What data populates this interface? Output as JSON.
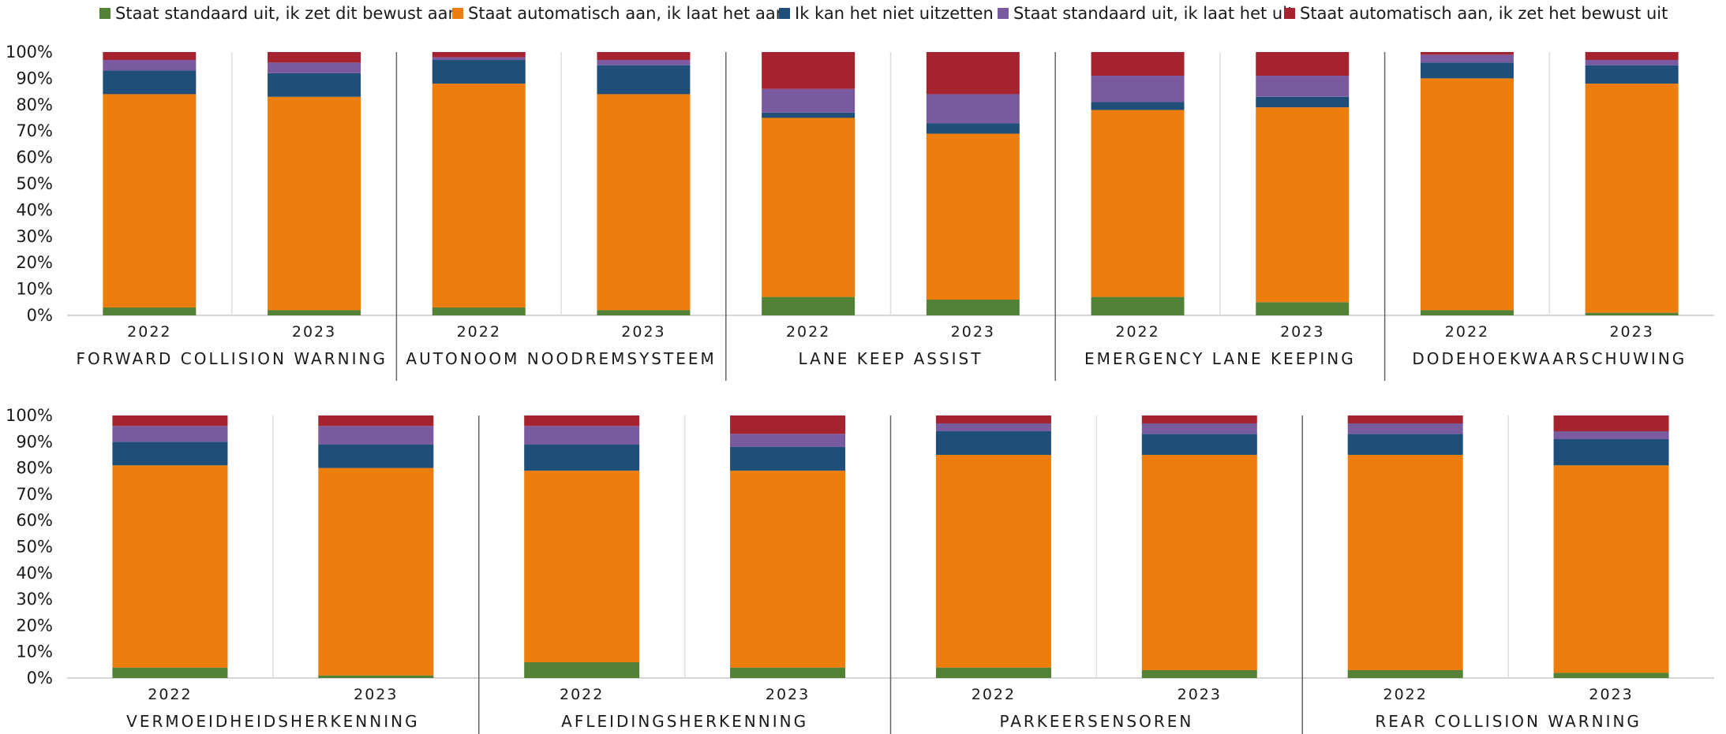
{
  "legend": [
    {
      "label": "Staat standaard uit, ik zet dit bewust aan",
      "color": "#538135"
    },
    {
      "label": "Staat automatisch aan, ik laat het aan",
      "color": "#ed7d0c"
    },
    {
      "label": "Ik kan het niet uitzetten",
      "color": "#1f4e79"
    },
    {
      "label": "Staat standaard uit, ik laat het uit",
      "color": "#7a5a9e"
    },
    {
      "label": "Staat automatisch aan, ik zet het bewust uit",
      "color": "#a4232f"
    }
  ],
  "chart_data": {
    "type": "bar",
    "stacked": true,
    "ytick_labels": [
      "0%",
      "10%",
      "20%",
      "30%",
      "40%",
      "50%",
      "60%",
      "70%",
      "80%",
      "90%",
      "100%"
    ],
    "ylim": [
      0,
      100
    ],
    "grid": false,
    "legend_position": "top",
    "series_names": [
      "Staat standaard uit, ik zet dit bewust aan",
      "Staat automatisch aan, ik laat het aan",
      "Ik kan het niet uitzetten",
      "Staat standaard uit, ik laat het uit",
      "Staat automatisch aan, ik zet het bewust uit"
    ],
    "groups": [
      {
        "name": "FORWARD COLLISION WARNING",
        "categories": [
          "2022",
          "2023"
        ],
        "values": [
          [
            3,
            81,
            9,
            4,
            3
          ],
          [
            2,
            81,
            9,
            4,
            4
          ]
        ]
      },
      {
        "name": "AUTONOOM NOODREMSYSTEEM",
        "categories": [
          "2022",
          "2023"
        ],
        "values": [
          [
            3,
            85,
            9,
            1,
            2
          ],
          [
            2,
            82,
            11,
            2,
            3
          ]
        ]
      },
      {
        "name": "LANE KEEP ASSIST",
        "categories": [
          "2022",
          "2023"
        ],
        "values": [
          [
            7,
            68,
            2,
            9,
            14
          ],
          [
            6,
            63,
            4,
            11,
            16
          ]
        ]
      },
      {
        "name": "EMERGENCY LANE KEEPING",
        "categories": [
          "2022",
          "2023"
        ],
        "values": [
          [
            7,
            71,
            3,
            10,
            9
          ],
          [
            5,
            74,
            4,
            8,
            9
          ]
        ]
      },
      {
        "name": "DODEHOEKWAARSCHUWING",
        "categories": [
          "2022",
          "2023"
        ],
        "values": [
          [
            2,
            88,
            6,
            3,
            1
          ],
          [
            1,
            87,
            7,
            2,
            3
          ]
        ]
      },
      {
        "name": "VERMOEIDHEIDSHERKENNING",
        "categories": [
          "2022",
          "2023"
        ],
        "values": [
          [
            4,
            77,
            9,
            6,
            4
          ],
          [
            1,
            79,
            9,
            7,
            4
          ]
        ]
      },
      {
        "name": "AFLEIDINGSHERKENNING",
        "categories": [
          "2022",
          "2023"
        ],
        "values": [
          [
            6,
            73,
            10,
            7,
            4
          ],
          [
            4,
            75,
            9,
            5,
            7
          ]
        ]
      },
      {
        "name": "PARKEERSENSOREN",
        "categories": [
          "2022",
          "2023"
        ],
        "values": [
          [
            4,
            81,
            9,
            3,
            3
          ],
          [
            3,
            82,
            8,
            4,
            3
          ]
        ]
      },
      {
        "name": "REAR COLLISION WARNING",
        "categories": [
          "2022",
          "2023"
        ],
        "values": [
          [
            3,
            82,
            8,
            4,
            3
          ],
          [
            2,
            79,
            10,
            3,
            6
          ]
        ]
      }
    ]
  }
}
